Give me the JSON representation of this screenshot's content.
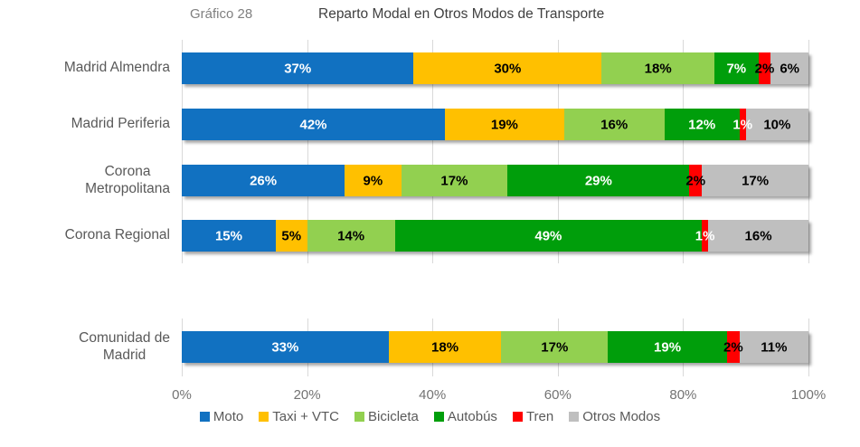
{
  "header": {
    "chart_label": "Gráfico 28",
    "title": "Reparto Modal en Otros Modos de Transporte"
  },
  "chart_data": {
    "type": "bar",
    "stacked": true,
    "orientation": "horizontal",
    "title": "Reparto Modal en Otros Modos de Transporte",
    "xlabel": "",
    "ylabel": "",
    "xlim": [
      0,
      100
    ],
    "grid": true,
    "legend_position": "bottom",
    "value_suffix": "%",
    "x_tick_labels": [
      "0%",
      "20%",
      "40%",
      "60%",
      "80%",
      "100%"
    ],
    "categories": [
      "Madrid Almendra",
      "Madrid Periferia",
      "Corona\nMetropolitana",
      "Corona Regional",
      "Comunidad de\nMadrid"
    ],
    "series": [
      {
        "name": "Moto",
        "color": "#1171C1",
        "label_color": "#FFFFFF",
        "values": [
          37,
          42,
          26,
          15,
          33
        ]
      },
      {
        "name": "Taxi + VTC",
        "color": "#FFC000",
        "label_color": "#000000",
        "values": [
          30,
          19,
          9,
          5,
          18
        ]
      },
      {
        "name": "Bicicleta",
        "color": "#92D050",
        "label_color": "#000000",
        "values": [
          18,
          16,
          17,
          14,
          17
        ]
      },
      {
        "name": "Autobús",
        "color": "#009E0B",
        "label_color": "#FFFFFF",
        "values": [
          7,
          12,
          29,
          49,
          19
        ],
        "label": "Autobús"
      },
      {
        "name": "Tren",
        "color": "#FF0000",
        "label_color": "#FFFFFF",
        "label_colors": [
          "#000000",
          "#FFFFFF",
          "#000000",
          "#FFFFFF",
          "#000000"
        ],
        "values": [
          2,
          1,
          2,
          1,
          2
        ]
      },
      {
        "name": "Otros Modos",
        "color": "#BFBFBF",
        "label_color": "#000000",
        "values": [
          6,
          10,
          17,
          16,
          11
        ]
      }
    ]
  },
  "colors": {
    "gridline": "#D9D9D9",
    "axis_text": "#737373",
    "category_text": "#595959",
    "legend_text": "#595959",
    "title_text": "#404040",
    "chart_label_text": "#7F7F7F",
    "background": "#FFFFFF"
  }
}
